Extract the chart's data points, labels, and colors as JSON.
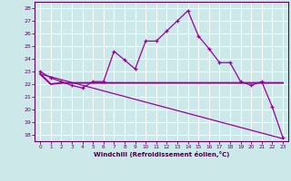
{
  "xlabel": "Windchill (Refroidissement éolien,°C)",
  "bg_color": "#cce8e8",
  "grid_color": "#ffffff",
  "line_color": "#990099",
  "ylim": [
    17.5,
    28.5
  ],
  "xlim": [
    -0.5,
    23.5
  ],
  "yticks": [
    18,
    19,
    20,
    21,
    22,
    23,
    24,
    25,
    26,
    27,
    28
  ],
  "xticks": [
    0,
    1,
    2,
    3,
    4,
    5,
    6,
    7,
    8,
    9,
    10,
    11,
    12,
    13,
    14,
    15,
    16,
    17,
    18,
    19,
    20,
    21,
    22,
    23
  ],
  "curve1_x": [
    0,
    1,
    2,
    3,
    4,
    5,
    6,
    7,
    8,
    9,
    10,
    11,
    12,
    13,
    14,
    15,
    16,
    17,
    18,
    19,
    20,
    21,
    22,
    23
  ],
  "curve1_y": [
    23.0,
    22.5,
    22.2,
    21.9,
    21.7,
    22.2,
    22.2,
    24.6,
    23.9,
    23.2,
    25.4,
    25.4,
    26.2,
    27.0,
    27.8,
    25.8,
    24.8,
    23.7,
    23.7,
    22.2,
    21.9,
    22.2,
    20.2,
    17.8
  ],
  "curve2_x": [
    0,
    1,
    2,
    3,
    4,
    5,
    6,
    19,
    23
  ],
  "curve2_y": [
    22.8,
    22.0,
    22.1,
    22.1,
    22.1,
    22.1,
    22.1,
    22.1,
    22.1
  ],
  "curve3_x": [
    0,
    23
  ],
  "curve3_y": [
    22.8,
    17.7
  ]
}
